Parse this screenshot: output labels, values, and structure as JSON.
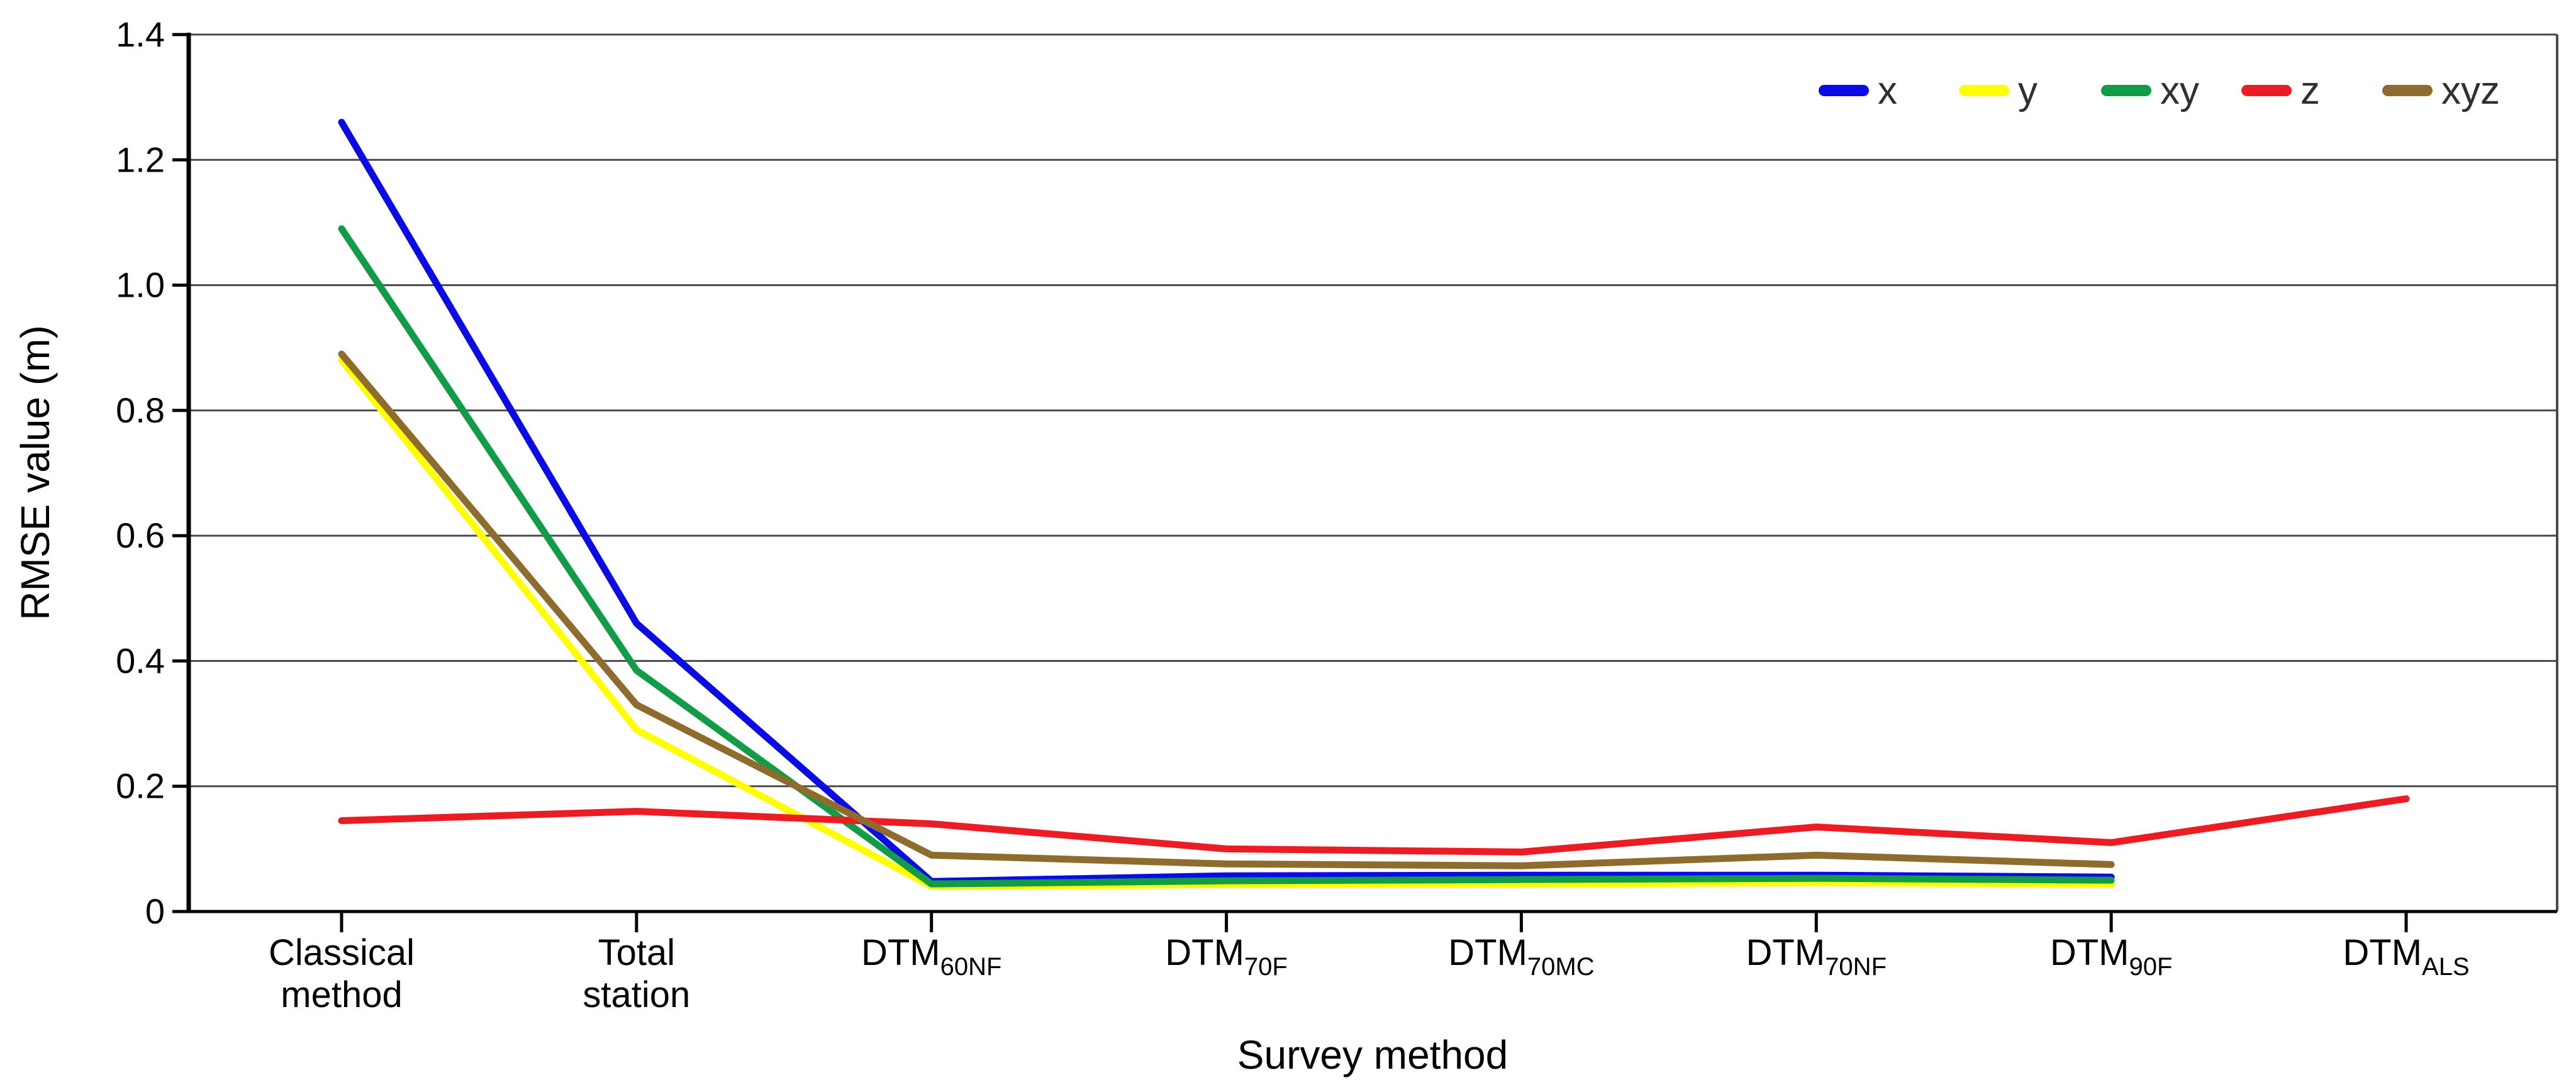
{
  "page": {
    "background": "#ffffff"
  },
  "chart_data": {
    "type": "line",
    "title": "",
    "xlabel": "Survey method",
    "ylabel": "RMSE value (m)",
    "ylim": [
      0,
      1.4
    ],
    "ytick_interval": 0.2,
    "ytick_labels": [
      "0",
      "0.2",
      "0.4",
      "0.6",
      "0.8",
      "1.0",
      "1.2",
      "1.4"
    ],
    "grid": "horizontal",
    "grid_color": "#4a4a4a",
    "axis_color": "#000000",
    "legend_position": "top-right",
    "categories": [
      {
        "text": "Classical",
        "text2": "method"
      },
      {
        "text": "Total",
        "text2": "station"
      },
      {
        "text": "DTM",
        "sub": "60NF"
      },
      {
        "text": "DTM",
        "sub": "70F"
      },
      {
        "text": "DTM",
        "sub": "70MC"
      },
      {
        "text": "DTM",
        "sub": "70NF"
      },
      {
        "text": "DTM",
        "sub": "90F"
      },
      {
        "text": "DTM",
        "sub": "ALS"
      }
    ],
    "series": [
      {
        "name": "x",
        "color": "#0b0be6",
        "values": [
          1.26,
          0.46,
          0.048,
          0.057,
          0.058,
          0.058,
          0.055,
          null
        ]
      },
      {
        "name": "y",
        "color": "#ffff00",
        "values": [
          0.88,
          0.29,
          0.04,
          0.043,
          0.044,
          0.046,
          0.044,
          null
        ]
      },
      {
        "name": "xy",
        "color": "#139c47",
        "values": [
          1.09,
          0.385,
          0.044,
          0.049,
          0.051,
          0.053,
          0.05,
          null
        ]
      },
      {
        "name": "z",
        "color": "#ec1c24",
        "values": [
          0.145,
          0.16,
          0.14,
          0.1,
          0.095,
          0.135,
          0.11,
          0.18
        ]
      },
      {
        "name": "xyz",
        "color": "#8e6c2e",
        "values": [
          0.89,
          0.33,
          0.09,
          0.076,
          0.073,
          0.09,
          0.075,
          null
        ]
      }
    ]
  }
}
